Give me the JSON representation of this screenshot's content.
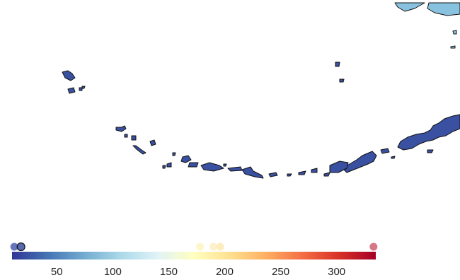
{
  "colors": {
    "background": "#ffffff",
    "land_fill": "#3a50a0",
    "mainland_fill": "#89c2df",
    "outline": "#111111"
  },
  "colorbar": {
    "ticks": [
      50,
      100,
      150,
      200,
      250,
      300
    ],
    "range": [
      10,
      335
    ],
    "stops": [
      "#313695",
      "#4575b4",
      "#74add1",
      "#abd9e9",
      "#e0f3f8",
      "#ffffbf",
      "#fee090",
      "#fdae61",
      "#f46d43",
      "#d73027",
      "#a50026"
    ],
    "markers": [
      {
        "value": 12,
        "color": "#4b5db0",
        "outlined": false
      },
      {
        "value": 18,
        "color": "#3b4fa3",
        "outlined": true
      },
      {
        "value": 178,
        "color": "#fbf5c4",
        "outlined": false
      },
      {
        "value": 190,
        "color": "#fcefc2",
        "outlined": false
      },
      {
        "value": 196,
        "color": "#fce9b4",
        "outlined": false
      },
      {
        "value": 333,
        "color": "#cf5f70",
        "outlined": false
      }
    ]
  }
}
